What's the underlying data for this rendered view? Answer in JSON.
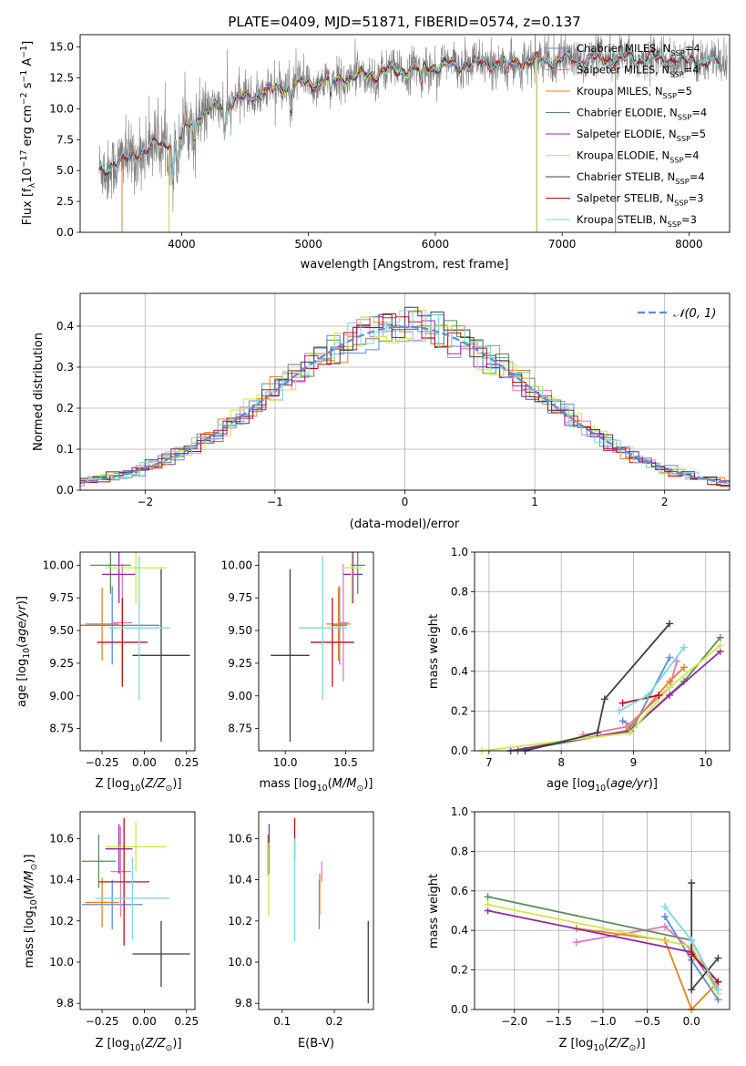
{
  "colors": {
    "Chabrier MILES": "#5b8bd9",
    "Salpeter MILES": "#e07bb5",
    "Kroupa MILES": "#e8821e",
    "Chabrier ELODIE": "#5e8b5a",
    "Salpeter ELODIE": "#8e2ba6",
    "Kroupa ELODIE": "#cfe84a",
    "Chabrier STELIB": "#404040",
    "Salpeter STELIB": "#b5121b",
    "Kroupa STELIB": "#7fd6e0",
    "data": "#7f7f7f",
    "normal": "#5b8bd9"
  },
  "chart_data": [
    {
      "id": "spectrum",
      "type": "line",
      "title": "PLATE=0409, MJD=51871, FIBERID=0574, z=0.137",
      "xlabel": "wavelength [Angstrom, rest frame]",
      "ylabel": "Flux [f$_\\lambda$10$^{-17}$ erg cm$^{-2}$ s$^{-1}$ A$^{-1}$]",
      "xlim": [
        3200,
        8320
      ],
      "ylim": [
        0,
        16
      ],
      "xticks": [
        4000,
        5000,
        6000,
        7000,
        8000
      ],
      "yticks": [
        0.0,
        2.5,
        5.0,
        7.5,
        10.0,
        12.5,
        15.0
      ],
      "legend_position": "upper right",
      "continuum_x": [
        3350,
        3500,
        3700,
        3900,
        4100,
        4300,
        4500,
        4700,
        4900,
        5100,
        5300,
        5500,
        5700,
        5900,
        6100,
        6300,
        6500,
        6700,
        6900,
        7100,
        7300,
        7500,
        7700,
        7900,
        8100,
        8300
      ],
      "continuum_y": [
        5.0,
        5.6,
        6.6,
        7.4,
        9.2,
        10.2,
        10.9,
        11.5,
        11.9,
        12.2,
        12.5,
        12.8,
        13.1,
        13.3,
        13.5,
        13.6,
        13.7,
        13.8,
        13.9,
        14.0,
        14.0,
        14.0,
        14.1,
        13.9,
        13.8,
        13.6
      ],
      "series": [
        {
          "name": "Chabrier MILES",
          "nssp": "4"
        },
        {
          "name": "Salpeter MILES",
          "nssp": "4"
        },
        {
          "name": "Kroupa MILES",
          "nssp": "5"
        },
        {
          "name": "Chabrier ELODIE",
          "nssp": "4"
        },
        {
          "name": "Salpeter ELODIE",
          "nssp": "5"
        },
        {
          "name": "Kroupa ELODIE",
          "nssp": "4"
        },
        {
          "name": "Chabrier STELIB",
          "nssp": "4"
        },
        {
          "name": "Salpeter STELIB",
          "nssp": "3"
        },
        {
          "name": "Kroupa STELIB",
          "nssp": "3"
        }
      ]
    },
    {
      "id": "residuals",
      "type": "line",
      "xlabel": "(data-model)/error",
      "ylabel": "Normed distribution",
      "xlim": [
        -2.5,
        2.5
      ],
      "ylim": [
        0,
        0.48
      ],
      "xticks": [
        -2,
        -1,
        0,
        1,
        2
      ],
      "yticks": [
        0.0,
        0.1,
        0.2,
        0.3,
        0.4
      ],
      "grid": true,
      "legend_position": "upper right",
      "reference_curve": {
        "name": "$\\mathcal{N}(0,1)$",
        "style": "dashed"
      },
      "bin_width": 0.1
    },
    {
      "id": "age-Z",
      "type": "scatter",
      "xlabel": "Z [log$_{10}$($Z/Z_\\odot$)]",
      "ylabel": "age  [log$_{10}$($age/yr$)]",
      "xlim": [
        -0.38,
        0.3
      ],
      "ylim": [
        8.58,
        10.1
      ],
      "xticks": [
        -0.25,
        0.0,
        0.25
      ],
      "xticklabels": [
        "−0.25",
        "0.00",
        "0.25"
      ],
      "yticks": [
        8.75,
        9.0,
        9.25,
        9.5,
        9.75,
        10.0
      ],
      "points": [
        {
          "series": "Chabrier MILES",
          "x": -0.19,
          "y": 9.54,
          "xerr": 0.28,
          "yerr": 0.3
        },
        {
          "series": "Salpeter MILES",
          "x": -0.13,
          "y": 9.56,
          "xerr": 0.06,
          "yerr": 0.45
        },
        {
          "series": "Kroupa MILES",
          "x": -0.25,
          "y": 9.55,
          "xerr": 0.1,
          "yerr": 0.28
        },
        {
          "series": "Chabrier ELODIE",
          "x": -0.2,
          "y": 10.0,
          "xerr": 0.12,
          "yerr": 0.22
        },
        {
          "series": "Salpeter ELODIE",
          "x": -0.15,
          "y": 9.93,
          "xerr": 0.1,
          "yerr": 0.22
        },
        {
          "series": "Kroupa ELODIE",
          "x": -0.05,
          "y": 9.98,
          "xerr": 0.18,
          "yerr": 0.28
        },
        {
          "series": "Chabrier STELIB",
          "x": 0.1,
          "y": 9.31,
          "xerr": 0.17,
          "yerr": 0.66
        },
        {
          "series": "Salpeter STELIB",
          "x": -0.13,
          "y": 9.41,
          "xerr": 0.15,
          "yerr": 0.34
        },
        {
          "series": "Kroupa STELIB",
          "x": -0.03,
          "y": 9.52,
          "xerr": 0.18,
          "yerr": 0.55
        }
      ]
    },
    {
      "id": "age-mass",
      "type": "scatter",
      "xlabel": "mass [log$_{10}$($M/M_\\odot$)]",
      "xlim": [
        9.78,
        10.73
      ],
      "ylim": [
        8.58,
        10.1
      ],
      "xticks": [
        10.0,
        10.5
      ],
      "yticks": [
        8.75,
        9.0,
        9.25,
        9.5,
        9.75,
        10.0
      ],
      "points": [
        {
          "series": "Chabrier MILES",
          "x": 10.45,
          "y": 9.54,
          "xerr": 0.06,
          "yerr": 0.3
        },
        {
          "series": "Salpeter MILES",
          "x": 10.48,
          "y": 9.56,
          "xerr": 0.04,
          "yerr": 0.45
        },
        {
          "series": "Kroupa MILES",
          "x": 10.44,
          "y": 9.55,
          "xerr": 0.1,
          "yerr": 0.28
        },
        {
          "series": "Chabrier ELODIE",
          "x": 10.6,
          "y": 10.0,
          "xerr": 0.06,
          "yerr": 0.22
        },
        {
          "series": "Salpeter ELODIE",
          "x": 10.56,
          "y": 9.93,
          "xerr": 0.08,
          "yerr": 0.22
        },
        {
          "series": "Kroupa ELODIE",
          "x": 10.55,
          "y": 9.98,
          "xerr": 0.08,
          "yerr": 0.28
        },
        {
          "series": "Chabrier STELIB",
          "x": 10.04,
          "y": 9.31,
          "xerr": 0.16,
          "yerr": 0.66
        },
        {
          "series": "Salpeter STELIB",
          "x": 10.39,
          "y": 9.41,
          "xerr": 0.18,
          "yerr": 0.34
        },
        {
          "series": "Kroupa STELIB",
          "x": 10.31,
          "y": 9.52,
          "xerr": 0.2,
          "yerr": 0.55
        }
      ]
    },
    {
      "id": "weight-age",
      "type": "line",
      "xlabel": "age  [log$_{10}$($age/yr$)]",
      "ylabel": "mass weight",
      "xlim": [
        6.8,
        10.33
      ],
      "ylim": [
        0,
        1.0
      ],
      "xticks": [
        7,
        8,
        9,
        10
      ],
      "yticks": [
        0.0,
        0.2,
        0.4,
        0.6,
        0.8,
        1.0
      ],
      "grid": true,
      "series": [
        {
          "name": "Chabrier MILES",
          "x": [
            8.85,
            9.0,
            9.5
          ],
          "y": [
            0.15,
            0.12,
            0.47
          ]
        },
        {
          "name": "Salpeter MILES",
          "x": [
            8.3,
            8.9,
            9.5,
            9.6
          ],
          "y": [
            0.08,
            0.12,
            0.32,
            0.45
          ]
        },
        {
          "name": "Kroupa MILES",
          "x": [
            7.3,
            8.9,
            9.5,
            9.7
          ],
          "y": [
            0.0,
            0.1,
            0.35,
            0.42
          ]
        },
        {
          "name": "Chabrier ELODIE",
          "x": [
            7.4,
            8.95,
            9.7,
            10.2
          ],
          "y": [
            0.0,
            0.1,
            0.35,
            0.57
          ]
        },
        {
          "name": "Salpeter ELODIE",
          "x": [
            7.3,
            8.95,
            9.5,
            10.2
          ],
          "y": [
            0.0,
            0.1,
            0.28,
            0.5
          ]
        },
        {
          "name": "Kroupa ELODIE",
          "x": [
            6.9,
            8.95,
            9.5,
            10.2
          ],
          "y": [
            0.0,
            0.09,
            0.32,
            0.53
          ]
        },
        {
          "name": "Chabrier STELIB",
          "x": [
            7.5,
            8.5,
            8.6,
            9.5
          ],
          "y": [
            0.0,
            0.09,
            0.26,
            0.64
          ]
        },
        {
          "name": "Salpeter STELIB",
          "x": [
            8.85,
            9.35
          ],
          "y": [
            0.24,
            0.28
          ]
        },
        {
          "name": "Kroupa STELIB",
          "x": [
            8.8,
            9.2,
            9.7
          ],
          "y": [
            0.2,
            0.28,
            0.52
          ]
        }
      ]
    },
    {
      "id": "mass-Z",
      "type": "scatter",
      "xlabel": "Z [log$_{10}$($Z/Z_\\odot$)]",
      "ylabel": "mass [log$_{10}$($M/M_\\odot$)]",
      "xlim": [
        -0.38,
        0.3
      ],
      "ylim": [
        9.77,
        10.73
      ],
      "xticks": [
        -0.25,
        0.0,
        0.25
      ],
      "xticklabels": [
        "−0.25",
        "0.00",
        "0.25"
      ],
      "yticks": [
        9.8,
        10.0,
        10.2,
        10.4,
        10.6
      ],
      "points": [
        {
          "series": "Chabrier MILES",
          "x": -0.19,
          "y": 10.28,
          "xerr": 0.18,
          "yerr": 0.12
        },
        {
          "series": "Salpeter MILES",
          "x": -0.14,
          "y": 10.44,
          "xerr": 0.06,
          "yerr": 0.22
        },
        {
          "series": "Kroupa MILES",
          "x": -0.25,
          "y": 10.29,
          "xerr": 0.1,
          "yerr": 0.12
        },
        {
          "series": "Chabrier ELODIE",
          "x": -0.27,
          "y": 10.49,
          "xerr": 0.1,
          "yerr": 0.13
        },
        {
          "series": "Salpeter ELODIE",
          "x": -0.15,
          "y": 10.55,
          "xerr": 0.08,
          "yerr": 0.12
        },
        {
          "series": "Kroupa ELODIE",
          "x": -0.05,
          "y": 10.56,
          "xerr": 0.18,
          "yerr": 0.12
        },
        {
          "series": "Chabrier STELIB",
          "x": 0.1,
          "y": 10.04,
          "xerr": 0.17,
          "yerr": 0.16
        },
        {
          "series": "Salpeter STELIB",
          "x": -0.12,
          "y": 10.39,
          "xerr": 0.15,
          "yerr": 0.31
        },
        {
          "series": "Kroupa STELIB",
          "x": -0.07,
          "y": 10.31,
          "xerr": 0.22,
          "yerr": 0.2
        }
      ]
    },
    {
      "id": "mass-EBV",
      "type": "scatter",
      "xlabel": "E(B-V)",
      "xlim": [
        0.055,
        0.275
      ],
      "ylim": [
        9.77,
        10.73
      ],
      "xticks": [
        0.1,
        0.2
      ],
      "yticks": [
        9.8,
        10.0,
        10.2,
        10.4,
        10.6
      ],
      "points": [
        {
          "series": "Chabrier MILES",
          "x": 0.171,
          "y": 10.28,
          "yerr": 0.12
        },
        {
          "series": "Salpeter MILES",
          "x": 0.176,
          "y": 10.44,
          "yerr": 0.05
        },
        {
          "series": "Kroupa MILES",
          "x": 0.172,
          "y": 10.33,
          "yerr": 0.1
        },
        {
          "series": "Chabrier ELODIE",
          "x": 0.073,
          "y": 10.52,
          "yerr": 0.1
        },
        {
          "series": "Salpeter ELODIE",
          "x": 0.075,
          "y": 10.55,
          "yerr": 0.12
        },
        {
          "series": "Kroupa ELODIE",
          "x": 0.074,
          "y": 10.4,
          "yerr": 0.18
        },
        {
          "series": "Chabrier STELIB",
          "x": 0.265,
          "y": 10.0,
          "yerr": 0.2
        },
        {
          "series": "Salpeter STELIB",
          "x": 0.124,
          "y": 10.6,
          "yerr": 0.1
        },
        {
          "series": "Kroupa STELIB",
          "x": 0.124,
          "y": 10.35,
          "yerr": 0.25
        }
      ]
    },
    {
      "id": "weight-Z",
      "type": "line",
      "xlabel": "Z [log$_{10}$($Z/Z_\\odot$)]",
      "ylabel": "mass weight",
      "xlim": [
        -2.45,
        0.43
      ],
      "ylim": [
        0,
        1.0
      ],
      "xticks": [
        -2.0,
        -1.5,
        -1.0,
        -0.5,
        0.0
      ],
      "xticklabels": [
        "−2.0",
        "−1.5",
        "−1.0",
        "−0.5",
        "0.0"
      ],
      "yticks": [
        0.0,
        0.2,
        0.4,
        0.6,
        0.8,
        1.0
      ],
      "grid": true,
      "series": [
        {
          "name": "Chabrier MILES",
          "x": [
            -0.3,
            0.0,
            0.3
          ],
          "y": [
            0.47,
            0.25,
            0.05
          ]
        },
        {
          "name": "Salpeter MILES",
          "x": [
            -1.3,
            -0.3,
            0.0,
            0.3
          ],
          "y": [
            0.34,
            0.42,
            0.3,
            0.14
          ]
        },
        {
          "name": "Kroupa MILES",
          "x": [
            -1.3,
            -0.3,
            0.0,
            0.3
          ],
          "y": [
            0.41,
            0.35,
            0.0,
            0.14
          ]
        },
        {
          "name": "Chabrier ELODIE",
          "x": [
            -2.3,
            0.0,
            0.3
          ],
          "y": [
            0.57,
            0.35,
            0.1
          ]
        },
        {
          "name": "Salpeter ELODIE",
          "x": [
            -2.3,
            0.0,
            0.3
          ],
          "y": [
            0.5,
            0.29,
            0.1
          ]
        },
        {
          "name": "Kroupa ELODIE",
          "x": [
            -2.3,
            0.0,
            0.3
          ],
          "y": [
            0.53,
            0.32,
            0.08
          ]
        },
        {
          "name": "Chabrier STELIB",
          "x": [
            0.0,
            0.0,
            0.3
          ],
          "y": [
            0.64,
            0.1,
            0.26
          ]
        },
        {
          "name": "Salpeter STELIB",
          "x": [
            0.0,
            0.3
          ],
          "y": [
            0.28,
            0.14
          ]
        },
        {
          "name": "Kroupa STELIB",
          "x": [
            -0.3,
            0.0,
            0.3
          ],
          "y": [
            0.52,
            0.35,
            0.1
          ]
        }
      ]
    }
  ]
}
